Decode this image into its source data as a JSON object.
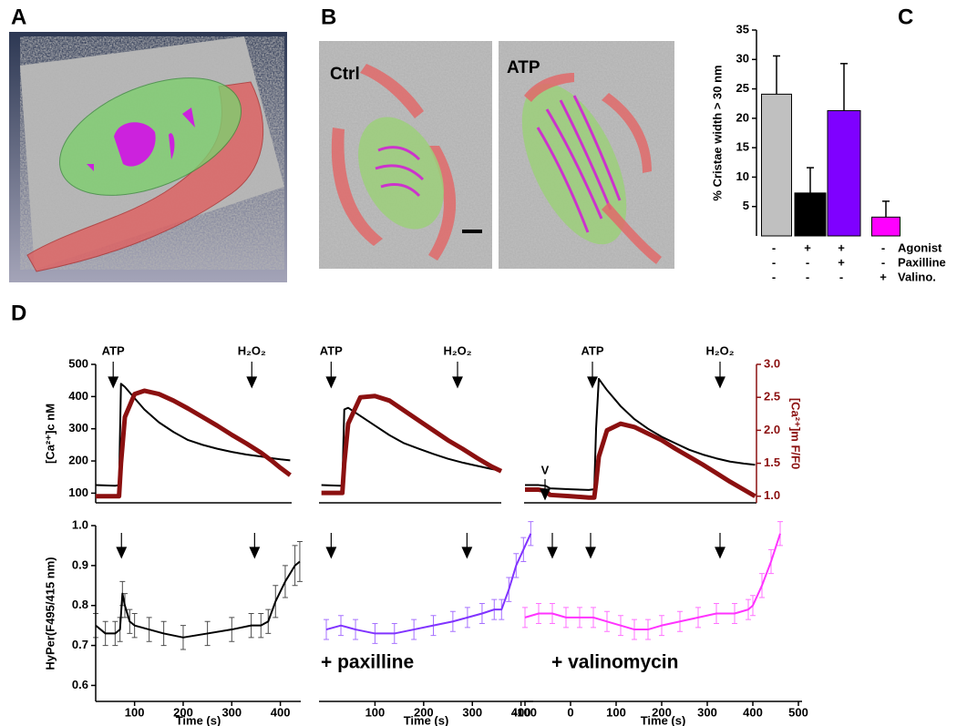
{
  "figure": {
    "panel_labels": [
      "A",
      "B",
      "C",
      "D"
    ],
    "image_labels": [
      "Ctrl",
      "ATP"
    ]
  },
  "chart_data": [
    {
      "type": "bar",
      "ylabel": "% Cristae width > 30 nm",
      "values": [
        24.1,
        7.3,
        21.3,
        3.2
      ],
      "errors": [
        6.5,
        4.3,
        8,
        2.7
      ],
      "colors": [
        "#c0c0c0",
        "#000000",
        "#7f00ff",
        "#ff00ff"
      ],
      "ylim": [
        0,
        35
      ],
      "yticks": [
        5,
        10,
        15,
        20,
        25,
        30,
        35
      ],
      "conditions": [
        {
          "label": "Agonist",
          "signs": [
            "-",
            "+",
            "+",
            "-"
          ]
        },
        {
          "label": "Paxilline",
          "signs": [
            "-",
            "-",
            "+",
            "-"
          ]
        },
        {
          "label": "Valino.",
          "signs": [
            "-",
            "-",
            "-",
            "+"
          ]
        }
      ]
    },
    {
      "type": "line",
      "ylabel": "[Ca²⁺]c nM",
      "x": [
        20,
        40,
        60,
        68,
        72,
        80,
        100,
        120,
        150,
        180,
        210,
        240,
        270,
        300,
        330,
        360,
        380,
        400,
        420
      ],
      "xlim": [
        20,
        423
      ],
      "ylim": [
        70,
        500
      ],
      "yticks": [
        100,
        200,
        300,
        400,
        500
      ],
      "y2lim": [
        0.9,
        3.0
      ],
      "series": [
        {
          "color": "#000000",
          "values": [
            125,
            124,
            123,
            125,
            440,
            430,
            395,
            360,
            320,
            290,
            265,
            250,
            238,
            228,
            220,
            214,
            209,
            205,
            202
          ]
        },
        {
          "color": "#8b1010",
          "axis": "y2",
          "values": [
            1.0,
            1.0,
            1.0,
            1.0,
            1.5,
            2.2,
            2.55,
            2.6,
            2.55,
            2.45,
            2.33,
            2.2,
            2.07,
            1.93,
            1.8,
            1.66,
            1.55,
            1.43,
            1.32
          ]
        }
      ],
      "annotations": [
        {
          "text": "ATP",
          "x": 56
        },
        {
          "text": "H₂O₂",
          "x": 341
        }
      ]
    },
    {
      "type": "line",
      "x": [
        -10,
        10,
        30,
        33,
        37,
        45,
        70,
        100,
        130,
        160,
        190,
        220,
        250,
        280,
        310,
        340,
        360
      ],
      "xlim": [
        -15,
        360
      ],
      "ylim": [
        70,
        500
      ],
      "y2lim": [
        0.9,
        3.0
      ],
      "series": [
        {
          "color": "#000000",
          "values": [
            125,
            124,
            123,
            125,
            360,
            365,
            340,
            310,
            280,
            255,
            238,
            222,
            207,
            195,
            185,
            175,
            170
          ]
        },
        {
          "color": "#8b1010",
          "axis": "y2",
          "values": [
            1.05,
            1.05,
            1.05,
            1.05,
            1.5,
            2.1,
            2.5,
            2.52,
            2.45,
            2.3,
            2.15,
            2.0,
            1.85,
            1.72,
            1.58,
            1.45,
            1.38
          ]
        }
      ],
      "annotations": [
        {
          "text": "ATP",
          "x": 10
        },
        {
          "text": "H₂O₂",
          "x": 270
        }
      ]
    },
    {
      "type": "line",
      "y2label": "[Ca²⁺]m F/F0",
      "x": [
        -100,
        -70,
        -55,
        -45,
        0,
        40,
        52,
        56,
        62,
        80,
        110,
        140,
        170,
        200,
        230,
        260,
        290,
        320,
        350,
        380,
        405
      ],
      "xlim": [
        -102,
        408
      ],
      "ylim": [
        70,
        500
      ],
      "y2lim": [
        0.9,
        3.0
      ],
      "y2ticks": [
        {
          "value": 1,
          "label": "1.0"
        },
        1.5,
        {
          "value": 2,
          "label": "2.0"
        },
        2.5,
        {
          "value": 3,
          "label": "3.0"
        }
      ],
      "series": [
        {
          "color": "#000000",
          "values": [
            125,
            125,
            123,
            115,
            112,
            110,
            112,
            300,
            455,
            420,
            370,
            330,
            300,
            275,
            255,
            235,
            220,
            208,
            198,
            192,
            188
          ]
        },
        {
          "color": "#8b1010",
          "axis": "y2",
          "values": [
            1.1,
            1.1,
            1.08,
            1.02,
            1.0,
            0.98,
            0.98,
            1.2,
            1.6,
            2.0,
            2.1,
            2.05,
            1.95,
            1.85,
            1.72,
            1.6,
            1.48,
            1.35,
            1.22,
            1.1,
            1.0
          ]
        }
      ],
      "annotations": [
        {
          "text": "V",
          "x": -56,
          "level": "low"
        },
        {
          "text": "ATP",
          "x": 48
        },
        {
          "text": "H₂O₂",
          "x": 328
        }
      ]
    },
    {
      "type": "line",
      "ylabel": "HyPer(F495/415 nm)",
      "xlabel": "Time (s)",
      "x": [
        20,
        40,
        60,
        70,
        75,
        80,
        90,
        100,
        130,
        160,
        200,
        250,
        300,
        340,
        360,
        375,
        390,
        410,
        430,
        440
      ],
      "xlim": [
        20,
        442
      ],
      "xticks": [
        100,
        200,
        300,
        400
      ],
      "ylim": [
        0.56,
        1.0
      ],
      "yticks": [
        {
          "value": 1,
          "label": "1.0"
        },
        0.9,
        0.8,
        0.7,
        0.6
      ],
      "series": [
        {
          "color": "#000000",
          "values": [
            0.75,
            0.73,
            0.73,
            0.74,
            0.83,
            0.8,
            0.76,
            0.75,
            0.74,
            0.73,
            0.72,
            0.73,
            0.74,
            0.75,
            0.75,
            0.76,
            0.81,
            0.86,
            0.9,
            0.91
          ],
          "errors": [
            0.03,
            0.03,
            0.03,
            0.03,
            0.03,
            0.03,
            0.03,
            0.03,
            0.03,
            0.03,
            0.03,
            0.03,
            0.03,
            0.03,
            0.03,
            0.03,
            0.04,
            0.04,
            0.05,
            0.05
          ]
        }
      ],
      "arrows": [
        73,
        347
      ]
    },
    {
      "type": "line",
      "xlabel": "Time (s)",
      "note": "+ paxilline",
      "x": [
        0,
        30,
        60,
        100,
        140,
        180,
        220,
        260,
        290,
        320,
        345,
        360,
        375,
        390,
        405,
        420
      ],
      "xlim": [
        -15,
        425
      ],
      "xticks": [
        100,
        200,
        300,
        400
      ],
      "ylim": [
        0.56,
        1.0
      ],
      "series": [
        {
          "color": "#8033ff",
          "values": [
            0.74,
            0.75,
            0.74,
            0.73,
            0.73,
            0.74,
            0.75,
            0.76,
            0.77,
            0.78,
            0.79,
            0.79,
            0.84,
            0.9,
            0.94,
            0.98
          ],
          "errors": [
            0.025,
            0.025,
            0.025,
            0.025,
            0.025,
            0.025,
            0.025,
            0.025,
            0.025,
            0.025,
            0.025,
            0.025,
            0.03,
            0.03,
            0.03,
            0.03
          ]
        }
      ],
      "arrows": [
        10,
        289
      ]
    },
    {
      "type": "line",
      "xlabel": "Time (s)",
      "note": "+ valinomycin",
      "x": [
        -100,
        -70,
        -40,
        -10,
        20,
        50,
        80,
        110,
        140,
        170,
        200,
        240,
        280,
        320,
        360,
        390,
        400,
        420,
        440,
        460
      ],
      "xlim": [
        -102,
        508
      ],
      "xticks": [
        -100,
        0,
        100,
        200,
        300,
        400,
        500
      ],
      "ylim": [
        0.56,
        1.0
      ],
      "series": [
        {
          "color": "#ff33ff",
          "values": [
            0.77,
            0.78,
            0.78,
            0.77,
            0.77,
            0.77,
            0.76,
            0.75,
            0.74,
            0.74,
            0.75,
            0.76,
            0.77,
            0.78,
            0.78,
            0.79,
            0.8,
            0.85,
            0.91,
            0.98
          ],
          "errors": [
            0.025,
            0.025,
            0.025,
            0.025,
            0.025,
            0.025,
            0.025,
            0.025,
            0.025,
            0.025,
            0.025,
            0.025,
            0.025,
            0.025,
            0.025,
            0.025,
            0.025,
            0.03,
            0.03,
            0.03
          ]
        }
      ],
      "arrows": [
        -40,
        44,
        328
      ]
    }
  ]
}
